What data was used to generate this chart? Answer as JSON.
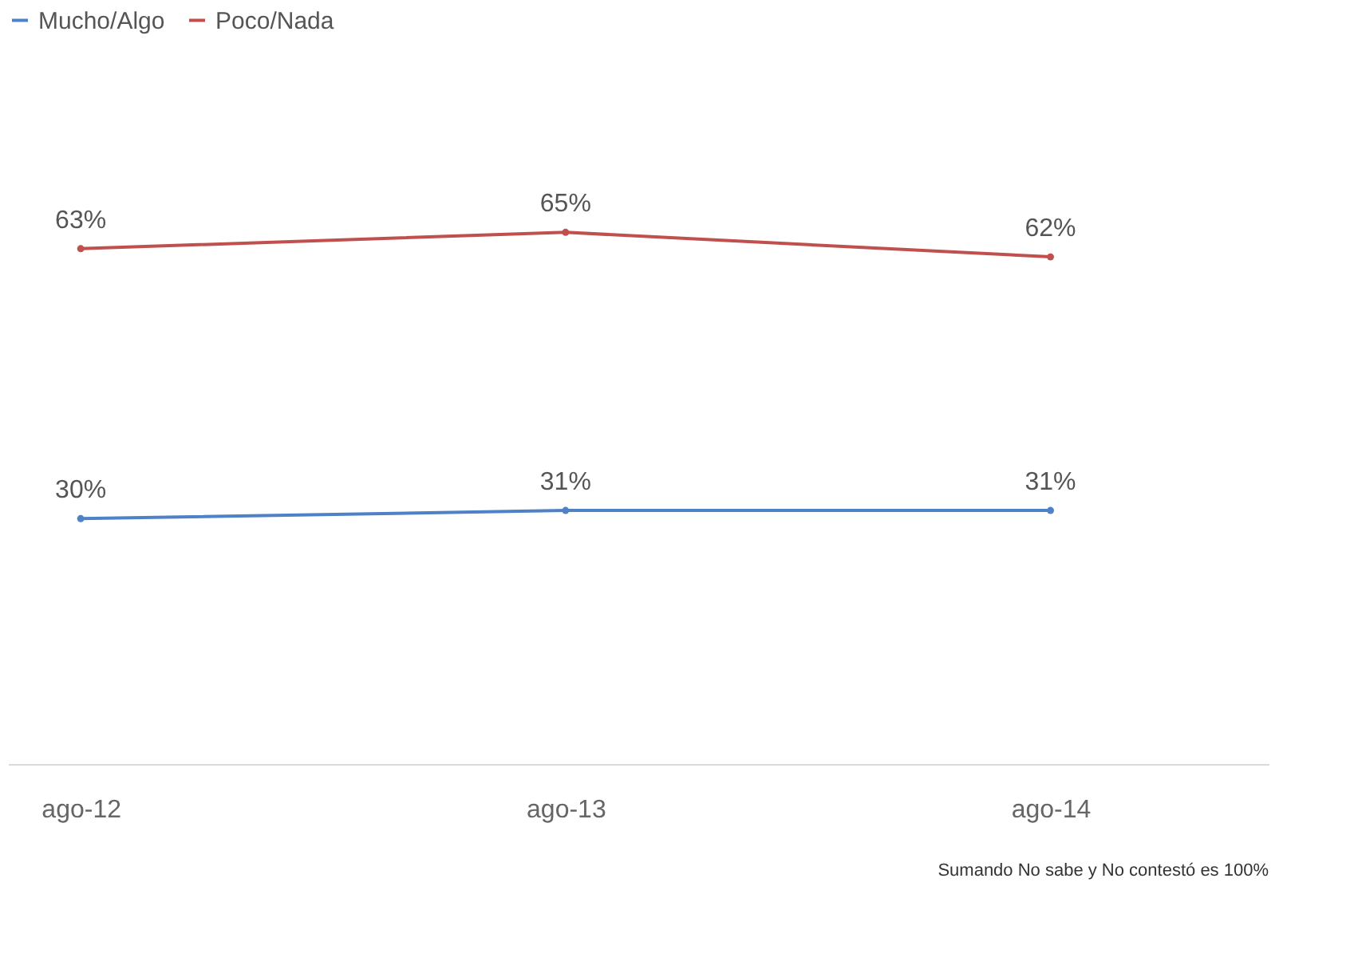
{
  "chart_data": {
    "type": "line",
    "categories": [
      "ago-12",
      "ago-13",
      "ago-14"
    ],
    "series": [
      {
        "name": "Mucho/Algo",
        "color": "#4f81c7",
        "values": [
          30,
          31,
          31
        ],
        "value_labels": [
          "30%",
          "31%",
          "31%"
        ]
      },
      {
        "name": "Poco/Nada",
        "color": "#c0504d",
        "values": [
          63,
          65,
          62
        ],
        "value_labels": [
          "63%",
          "65%",
          "62%"
        ]
      }
    ],
    "annotations": [
      "Sumando No sabe y No contestó es 100%"
    ],
    "legend": "top",
    "marker": "circle",
    "line_style": "solid"
  }
}
